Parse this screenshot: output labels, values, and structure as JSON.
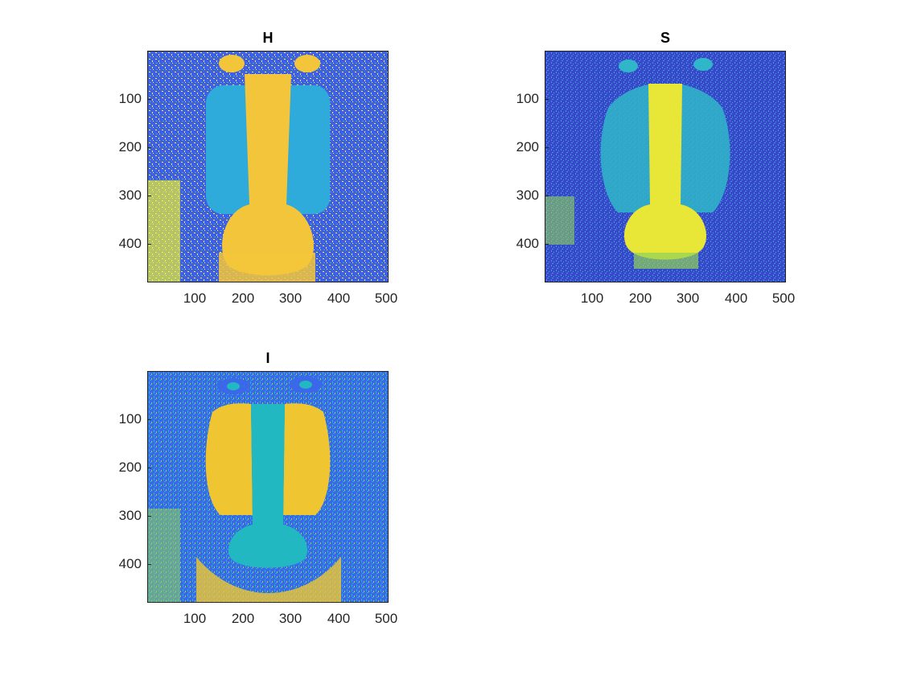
{
  "panels": [
    {
      "title": "H",
      "xticks": [
        "100",
        "200",
        "300",
        "400",
        "500"
      ],
      "yticks": [
        "100",
        "200",
        "300",
        "400"
      ],
      "colors": {
        "background": "#3e5fe6",
        "main": "#2eaadb",
        "highlight": "#f3c53a",
        "noise": "#f8f82a"
      }
    },
    {
      "title": "S",
      "xticks": [
        "100",
        "200",
        "300",
        "400",
        "500"
      ],
      "yticks": [
        "100",
        "200",
        "300",
        "400"
      ],
      "colors": {
        "background": "#3649c9",
        "main": "#2fb6c9",
        "highlight": "#e8e637",
        "noise": "#4f8ee6"
      }
    },
    {
      "title": "I",
      "xticks": [
        "100",
        "200",
        "300",
        "400",
        "500"
      ],
      "yticks": [
        "100",
        "200",
        "300",
        "400"
      ],
      "colors": {
        "background": "#3a68e8",
        "main": "#21b8c2",
        "highlight": "#f0c532",
        "noise": "#8fd25a"
      }
    }
  ]
}
